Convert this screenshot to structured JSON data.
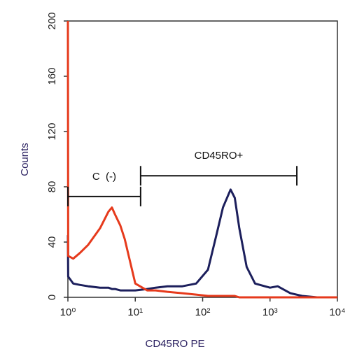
{
  "chart_data": {
    "type": "histogram-overlay",
    "xlabel": "CD45RO PE",
    "ylabel": "Counts",
    "xscale": "log",
    "xlim": [
      1,
      10000
    ],
    "xticks": [
      {
        "value": 1,
        "label": "10⁰"
      },
      {
        "value": 10,
        "label": "10¹"
      },
      {
        "value": 100,
        "label": "10²"
      },
      {
        "value": 1000,
        "label": "10³"
      },
      {
        "value": 10000,
        "label": "10⁴"
      }
    ],
    "ylim": [
      0,
      200
    ],
    "yticks": [
      0,
      40,
      80,
      120,
      160,
      200
    ],
    "x": [
      1,
      1.01,
      1.2,
      1.5,
      2,
      3,
      4,
      4.5,
      5,
      6,
      7,
      8,
      10,
      15,
      20,
      30,
      50,
      80,
      120,
      160,
      200,
      260,
      300,
      350,
      450,
      600,
      1000,
      1300,
      2000,
      3000,
      5000,
      10000
    ],
    "series": [
      {
        "color": "#1c1f5c",
        "values": [
          45,
          15,
          10,
          9,
          8,
          7,
          7,
          6,
          6,
          5,
          5,
          5,
          5,
          6,
          7,
          8,
          8,
          10,
          20,
          45,
          65,
          78,
          72,
          50,
          22,
          10,
          7,
          8,
          3,
          1,
          0,
          0
        ]
      },
      {
        "color": "#e63a1c",
        "values": [
          200,
          30,
          28,
          32,
          38,
          50,
          62,
          65,
          60,
          52,
          42,
          30,
          10,
          5,
          5,
          4,
          3,
          2,
          1,
          1,
          1,
          1,
          1,
          0,
          0,
          0,
          0,
          0,
          0,
          0,
          0,
          0
        ]
      }
    ],
    "gates": [
      {
        "label": "C  (-)",
        "x_start": 1,
        "x_end": 12,
        "y": 73
      },
      {
        "label": "CD45RO+",
        "x_start": 12,
        "x_end": 2500,
        "y": 88
      }
    ]
  }
}
